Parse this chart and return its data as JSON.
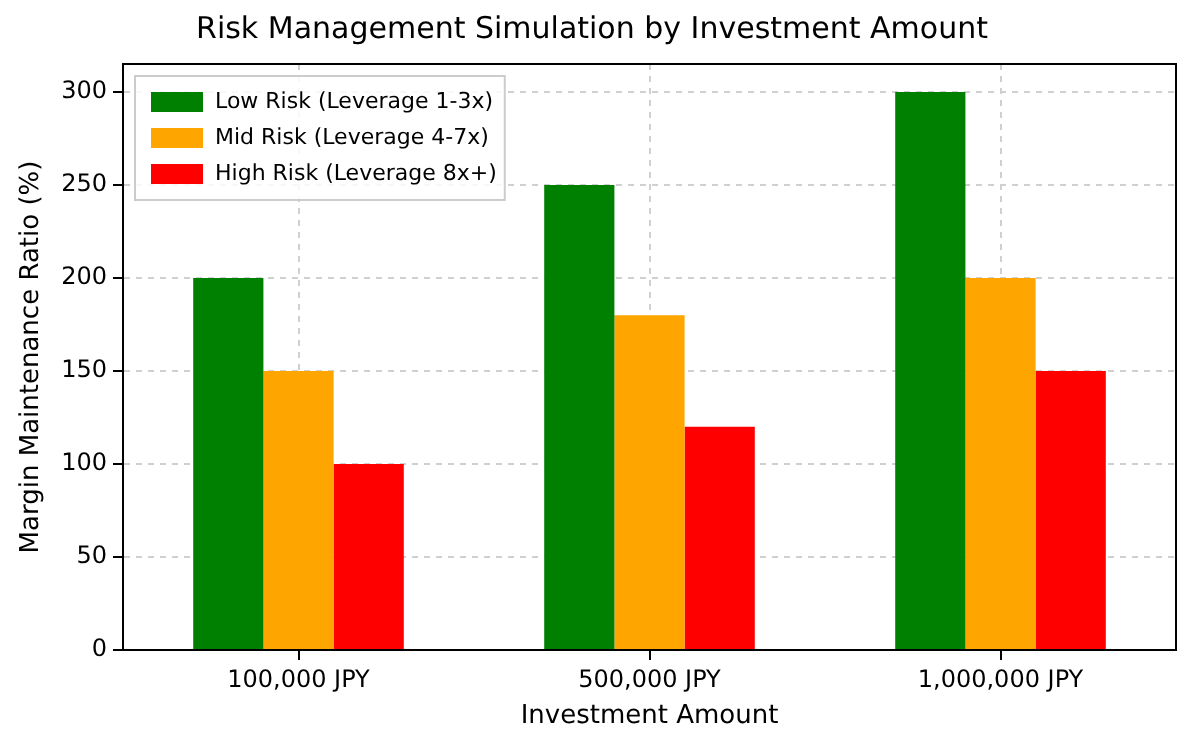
{
  "chart_data": {
    "type": "bar",
    "title": "Risk Management Simulation by Investment Amount",
    "xlabel": "Investment Amount",
    "ylabel": "Margin Maintenance Ratio (%)",
    "categories": [
      "100,000 JPY",
      "500,000 JPY",
      "1,000,000 JPY"
    ],
    "series": [
      {
        "name": "Low Risk (Leverage 1-3x)",
        "color": "#008000",
        "values": [
          200,
          250,
          300
        ]
      },
      {
        "name": "Mid Risk (Leverage 4-7x)",
        "color": "#ffa500",
        "values": [
          150,
          180,
          200
        ]
      },
      {
        "name": "High Risk (Leverage 8x+)",
        "color": "#ff0000",
        "values": [
          100,
          120,
          150
        ]
      }
    ],
    "ylim": [
      0,
      315
    ],
    "yticks": [
      0,
      50,
      100,
      150,
      200,
      250,
      300
    ],
    "grid": true,
    "legend": "top left"
  }
}
